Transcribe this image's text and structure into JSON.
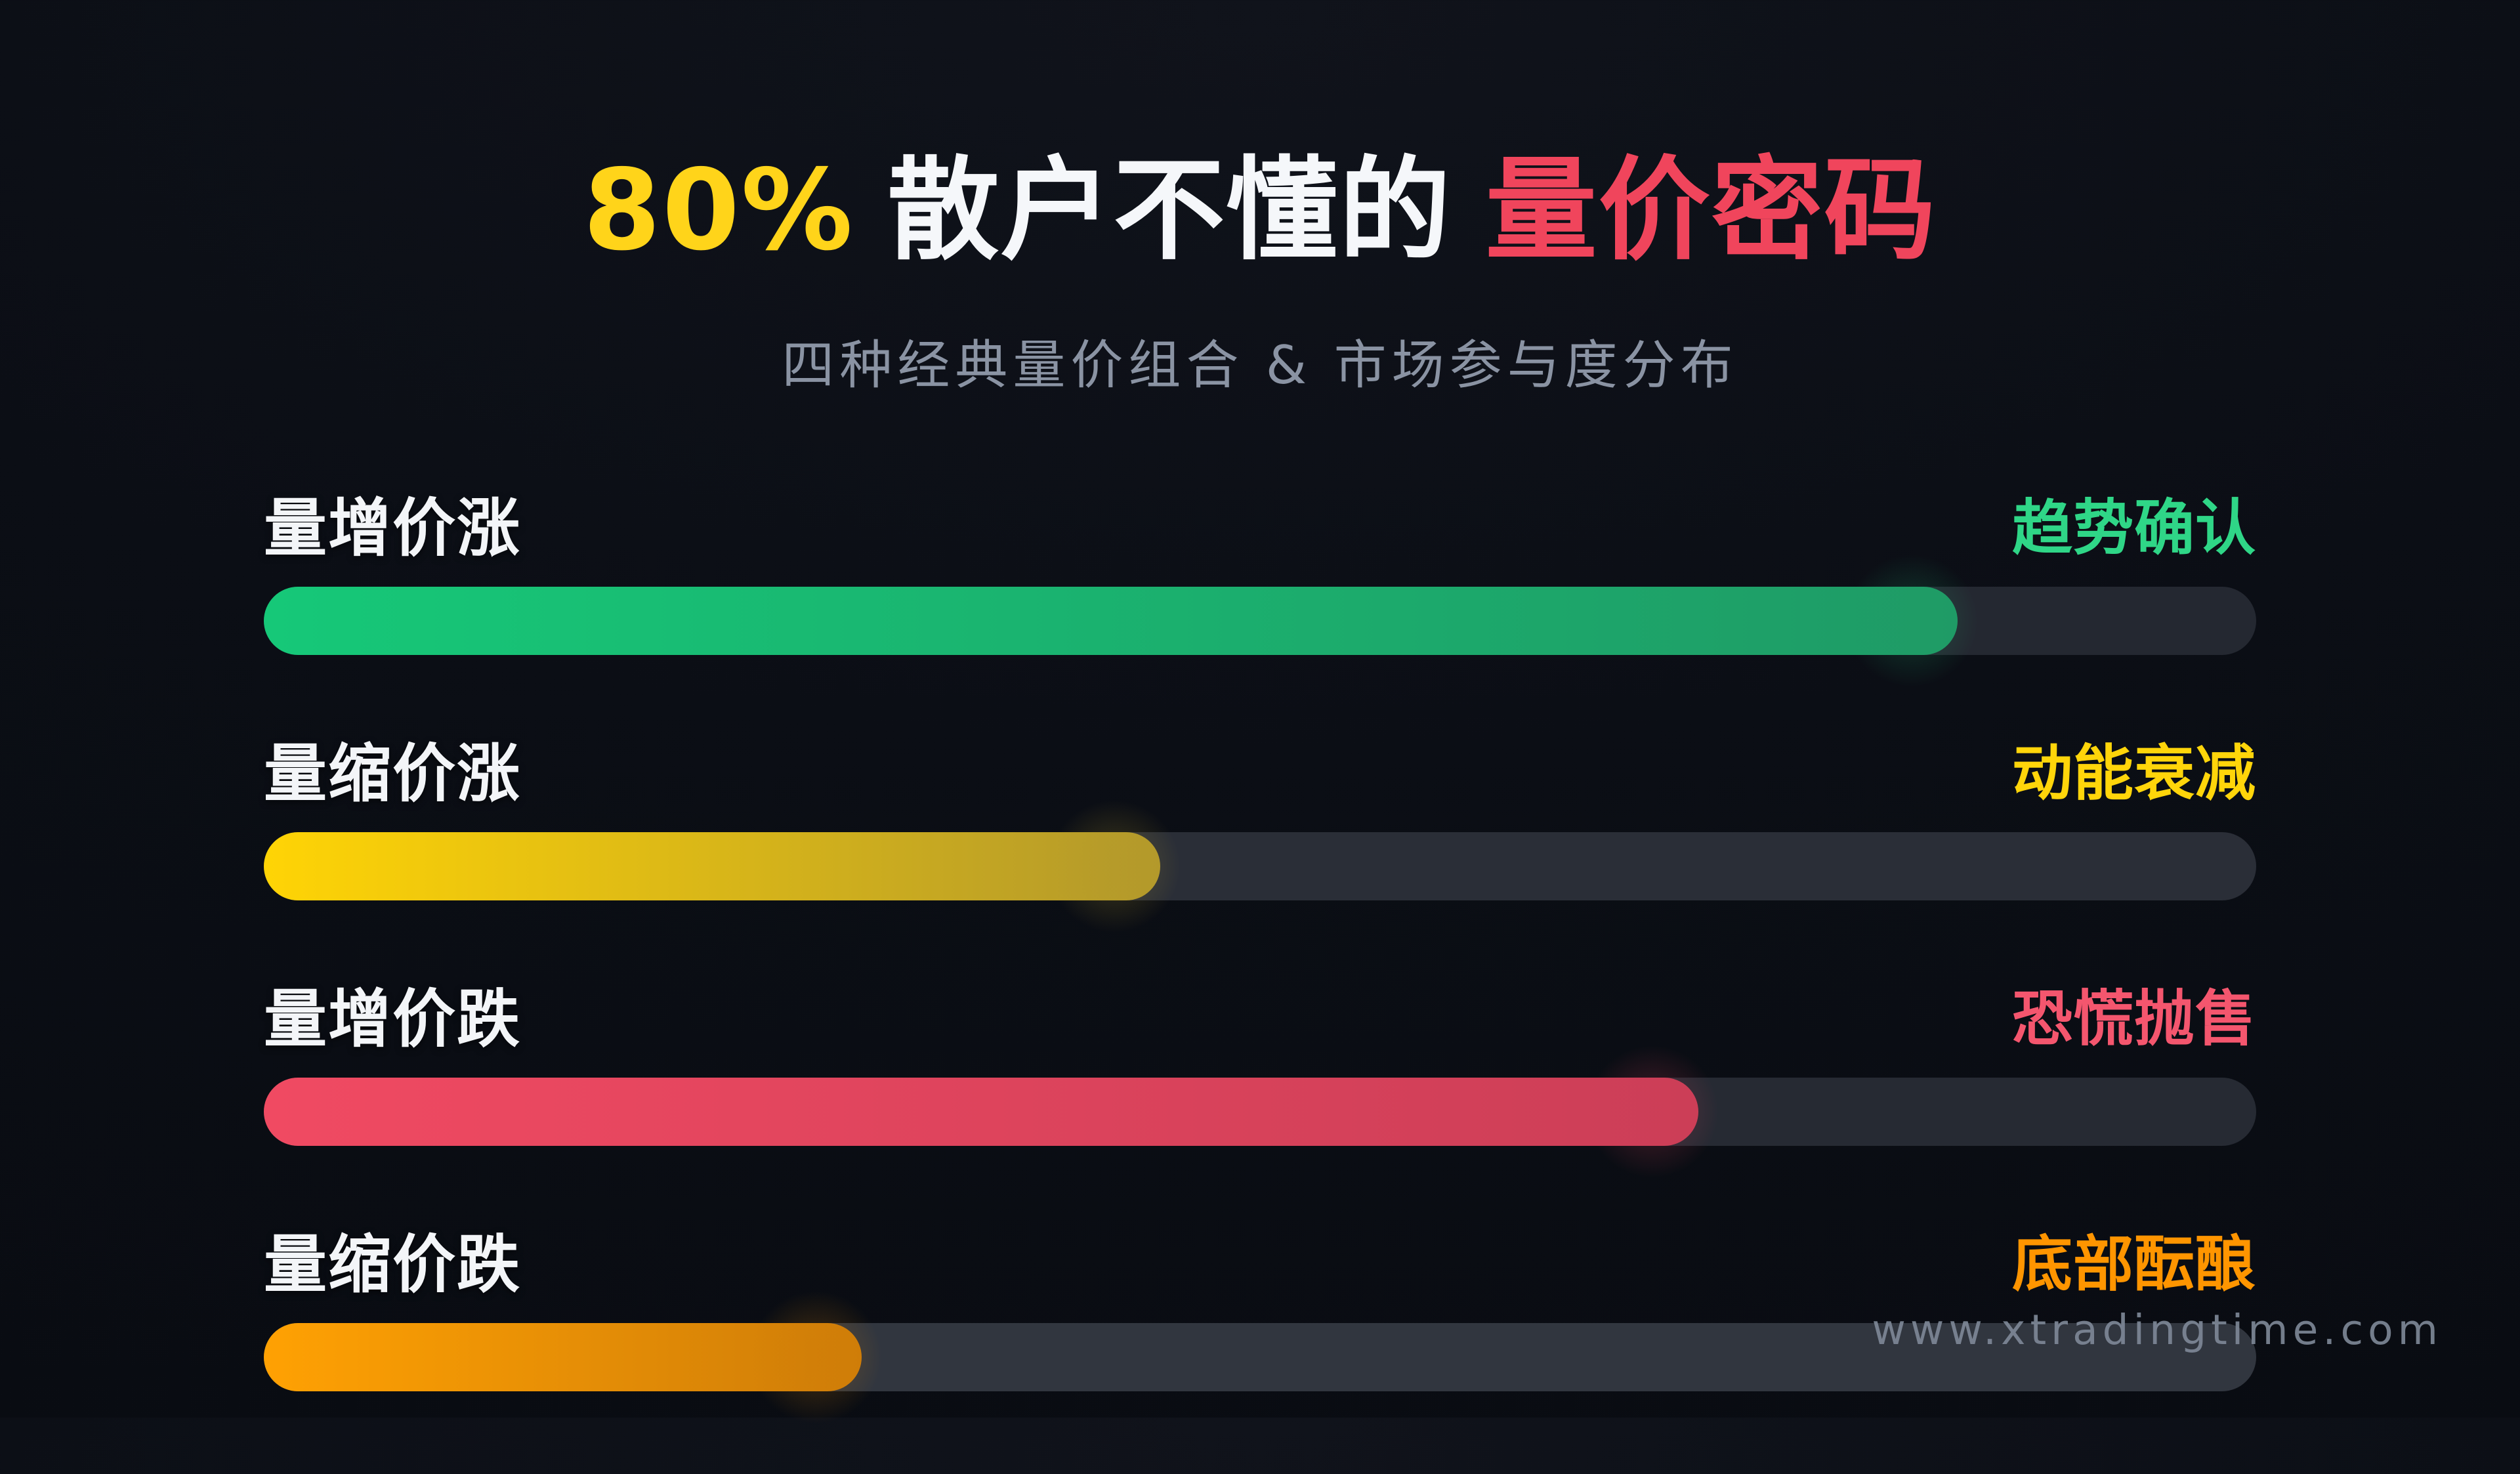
{
  "page": {
    "title_segments": [
      {
        "text": "80%",
        "color": "#ffd41a"
      },
      {
        "text": "散户不懂的",
        "color": "#f5f7fa"
      },
      {
        "text": "量价密码",
        "color": "#f0455c"
      }
    ],
    "subtitle": "四种经典量价组合 & 市场参与度分布",
    "watermark": "www.xtradingtime.com"
  },
  "chart_data": {
    "type": "bar",
    "orientation": "horizontal",
    "title": "80% 散户不懂的 量价密码",
    "subtitle": "四种经典量价组合 & 市场参与度分布",
    "xlabel": "",
    "ylabel": "",
    "xlim": [
      0,
      100
    ],
    "grid": false,
    "legend": "none",
    "categories": [
      "量增价涨",
      "量缩价涨",
      "量增价跌",
      "量缩价跌"
    ],
    "values": [
      85,
      45,
      72,
      30
    ],
    "annotations": [
      "趋势确认",
      "动能衰减",
      "恐慌抛售",
      "底部酝酿"
    ],
    "rows": [
      {
        "category": "量增价涨",
        "annotation": "趋势确认",
        "value": 85,
        "annotation_color": "#2fd687",
        "bar_start": "#16c878",
        "bar_end": "#1f9b66",
        "track_color": "#242831"
      },
      {
        "category": "量缩价涨",
        "annotation": "动能衰减",
        "value": 45,
        "annotation_color": "#ffd50a",
        "bar_start": "#ffd405",
        "bar_end": "#b3992b",
        "track_color": "#2a2e37"
      },
      {
        "category": "量增价跌",
        "annotation": "恐慌抛售",
        "value": 72,
        "annotation_color": "#f4566e",
        "bar_start": "#f04a62",
        "bar_end": "#cc3e57",
        "track_color": "#262a33"
      },
      {
        "category": "量缩价跌",
        "annotation": "底部酝酿",
        "value": 30,
        "annotation_color": "#ff9500",
        "bar_start": "#ffa103",
        "bar_end": "#cf7d08",
        "track_color": "#31363f"
      }
    ]
  }
}
